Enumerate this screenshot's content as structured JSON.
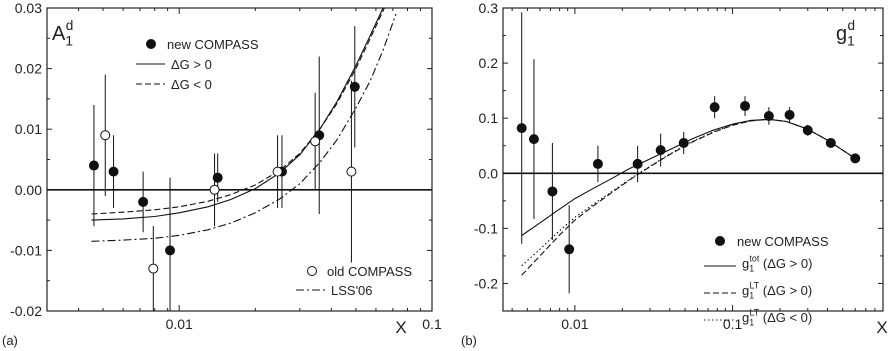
{
  "chart_data": [
    {
      "panel_label": "(a)",
      "type": "scatter",
      "title_main": "A",
      "title_sub": "1",
      "title_sup": "d",
      "xlabel": "X",
      "x_scale": "log",
      "xlim": [
        0.003,
        0.1
      ],
      "ylim": [
        -0.02,
        0.03
      ],
      "x_tick_labels": [
        {
          "value": 0.01,
          "label": "0.01"
        },
        {
          "value": 0.1,
          "label": "0.1"
        }
      ],
      "y_tick_labels": [
        {
          "value": -0.02,
          "label": "-0.02"
        },
        {
          "value": -0.01,
          "label": "-0.01"
        },
        {
          "value": 0.0,
          "label": "0.00"
        },
        {
          "value": 0.01,
          "label": "0.01"
        },
        {
          "value": 0.02,
          "label": "0.02"
        },
        {
          "value": 0.03,
          "label": "0.03"
        }
      ],
      "zero_line": 0,
      "legend_top": {
        "placement": "top-left",
        "entries": [
          {
            "marker": "filled-circle",
            "label": "new COMPASS"
          },
          {
            "line": "solid",
            "label": "ΔG > 0"
          },
          {
            "line": "dashed",
            "label": "ΔG < 0"
          }
        ]
      },
      "legend_bottom": {
        "placement": "bottom-right",
        "entries": [
          {
            "marker": "open-circle",
            "label": "old COMPASS"
          },
          {
            "line": "dashdot",
            "label": "LSS'06"
          }
        ]
      },
      "points": [
        {
          "series": "new",
          "x": 0.0046,
          "y": 0.004,
          "err": 0.01
        },
        {
          "series": "new",
          "x": 0.0055,
          "y": 0.003,
          "err": 0.006
        },
        {
          "series": "new",
          "x": 0.0072,
          "y": -0.002,
          "err": 0.005
        },
        {
          "series": "new",
          "x": 0.0092,
          "y": -0.01,
          "err": 0.012
        },
        {
          "series": "new",
          "x": 0.0142,
          "y": 0.002,
          "err": 0.004
        },
        {
          "series": "new",
          "x": 0.0255,
          "y": 0.003,
          "err": 0.006
        },
        {
          "series": "new",
          "x": 0.0358,
          "y": 0.009,
          "err": 0.013
        },
        {
          "series": "new",
          "x": 0.0495,
          "y": 0.017,
          "err": 0.01
        },
        {
          "series": "old",
          "x": 0.0051,
          "y": 0.009,
          "err": 0.01
        },
        {
          "series": "old",
          "x": 0.0079,
          "y": -0.013,
          "err": 0.007
        },
        {
          "series": "old",
          "x": 0.0138,
          "y": 0.0,
          "err": 0.006
        },
        {
          "series": "old",
          "x": 0.0245,
          "y": 0.003,
          "err": 0.006
        },
        {
          "series": "old",
          "x": 0.0345,
          "y": 0.008,
          "err": 0.008
        },
        {
          "series": "old",
          "x": 0.048,
          "y": 0.003,
          "err": 0.015
        }
      ],
      "curves": [
        {
          "style": "solid",
          "x": [
            0.0045,
            0.006,
            0.008,
            0.01,
            0.013,
            0.016,
            0.02,
            0.025,
            0.03,
            0.036,
            0.042,
            0.05,
            0.057,
            0.064,
            0.071
          ],
          "y": [
            -0.005,
            -0.0048,
            -0.0044,
            -0.0038,
            -0.0028,
            -0.0016,
            0.0002,
            0.0028,
            0.0058,
            0.01,
            0.0145,
            0.0205,
            0.0255,
            0.03,
            0.0345
          ]
        },
        {
          "style": "dashed",
          "x": [
            0.0045,
            0.006,
            0.008,
            0.01,
            0.013,
            0.016,
            0.02,
            0.025,
            0.03,
            0.036,
            0.042,
            0.05,
            0.057,
            0.064,
            0.071
          ],
          "y": [
            -0.004,
            -0.0037,
            -0.0033,
            -0.0028,
            -0.0019,
            -0.0008,
            0.0008,
            0.0032,
            0.006,
            0.01,
            0.0142,
            0.02,
            0.025,
            0.0295,
            0.034
          ]
        },
        {
          "style": "dashdot",
          "x": [
            0.0045,
            0.006,
            0.008,
            0.01,
            0.013,
            0.016,
            0.02,
            0.025,
            0.03,
            0.036,
            0.042,
            0.05,
            0.057,
            0.064,
            0.072
          ],
          "y": [
            -0.0085,
            -0.0083,
            -0.008,
            -0.0075,
            -0.0066,
            -0.0055,
            -0.0038,
            -0.0015,
            0.001,
            0.0045,
            0.0082,
            0.0135,
            0.018,
            0.023,
            0.029
          ]
        }
      ]
    },
    {
      "panel_label": "(b)",
      "type": "scatter",
      "title_main": "g",
      "title_sub": "1",
      "title_sup": "d",
      "xlabel": "X",
      "x_scale": "log",
      "xlim": [
        0.0035,
        0.9
      ],
      "ylim": [
        -0.25,
        0.3
      ],
      "x_tick_labels": [
        {
          "value": 0.01,
          "label": "0.01"
        },
        {
          "value": 0.1,
          "label": "0.1"
        }
      ],
      "y_tick_labels": [
        {
          "value": -0.2,
          "label": "-0.2"
        },
        {
          "value": -0.1,
          "label": "-0.1"
        },
        {
          "value": 0.0,
          "label": "0.0"
        },
        {
          "value": 0.1,
          "label": "0.1"
        },
        {
          "value": 0.2,
          "label": "0.2"
        },
        {
          "value": 0.3,
          "label": "0.3"
        }
      ],
      "zero_line": 0,
      "legend": {
        "placement": "bottom-right",
        "entries": [
          {
            "marker": "filled-circle",
            "label": "new COMPASS"
          },
          {
            "line": "solid",
            "label_main": "g",
            "label_sub": "1",
            "label_sup": "tot",
            "label_rest": "  (ΔG > 0)"
          },
          {
            "line": "dashed",
            "label_main": "g",
            "label_sub": "1",
            "label_sup": "LT",
            "label_rest": "  (ΔG > 0)"
          },
          {
            "line": "dotted",
            "label_main": "g",
            "label_sub": "1",
            "label_sup": "LT",
            "label_rest": "  (ΔG < 0)"
          }
        ]
      },
      "points": [
        {
          "x": 0.0046,
          "y": 0.082,
          "err": 0.21
        },
        {
          "x": 0.0055,
          "y": 0.062,
          "err": 0.145
        },
        {
          "x": 0.0072,
          "y": -0.033,
          "err": 0.088
        },
        {
          "x": 0.0092,
          "y": -0.138,
          "err": 0.08
        },
        {
          "x": 0.014,
          "y": 0.017,
          "err": 0.033
        },
        {
          "x": 0.025,
          "y": 0.017,
          "err": 0.033
        },
        {
          "x": 0.035,
          "y": 0.042,
          "err": 0.03
        },
        {
          "x": 0.049,
          "y": 0.055,
          "err": 0.02
        },
        {
          "x": 0.077,
          "y": 0.12,
          "err": 0.02
        },
        {
          "x": 0.12,
          "y": 0.122,
          "err": 0.018
        },
        {
          "x": 0.17,
          "y": 0.104,
          "err": 0.016
        },
        {
          "x": 0.23,
          "y": 0.106,
          "err": 0.014
        },
        {
          "x": 0.3,
          "y": 0.078,
          "err": 0.01
        },
        {
          "x": 0.42,
          "y": 0.055,
          "err": 0.007
        },
        {
          "x": 0.6,
          "y": 0.027,
          "err": 0.005
        }
      ],
      "curves": [
        {
          "style": "solid",
          "x": [
            0.0046,
            0.006,
            0.008,
            0.01,
            0.013,
            0.017,
            0.022,
            0.03,
            0.04,
            0.055,
            0.075,
            0.1,
            0.13,
            0.17,
            0.22,
            0.3,
            0.4,
            0.6
          ],
          "y": [
            -0.113,
            -0.09,
            -0.065,
            -0.046,
            -0.028,
            -0.01,
            0.008,
            0.026,
            0.043,
            0.062,
            0.078,
            0.089,
            0.096,
            0.098,
            0.094,
            0.08,
            0.06,
            0.027
          ]
        },
        {
          "style": "dashed",
          "x": [
            0.0046,
            0.006,
            0.008,
            0.01,
            0.013,
            0.017,
            0.022,
            0.03,
            0.04,
            0.055,
            0.075,
            0.1,
            0.13,
            0.17,
            0.22,
            0.3,
            0.4,
            0.6
          ],
          "y": [
            -0.185,
            -0.15,
            -0.112,
            -0.085,
            -0.06,
            -0.036,
            -0.013,
            0.012,
            0.034,
            0.056,
            0.074,
            0.087,
            0.095,
            0.098,
            0.094,
            0.08,
            0.06,
            0.027
          ]
        },
        {
          "style": "dotted",
          "x": [
            0.0046,
            0.006,
            0.008,
            0.01,
            0.013,
            0.017,
            0.022,
            0.03,
            0.04,
            0.055,
            0.075,
            0.1,
            0.13,
            0.17,
            0.22,
            0.3,
            0.4,
            0.6
          ],
          "y": [
            -0.168,
            -0.138,
            -0.104,
            -0.08,
            -0.057,
            -0.034,
            -0.012,
            0.013,
            0.035,
            0.057,
            0.075,
            0.088,
            0.095,
            0.098,
            0.094,
            0.08,
            0.06,
            0.027
          ]
        }
      ]
    }
  ]
}
